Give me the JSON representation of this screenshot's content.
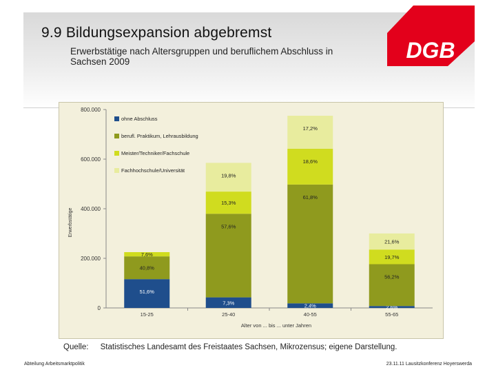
{
  "slide": {
    "title": "9.9 Bildungsexpansion abgebremst",
    "subtitle": "Erwerbstätige nach Altersgruppen und beruflichem Abschluss in Sachsen 2009",
    "logo_text": "DGB",
    "source_label": "Quelle:",
    "source_text": "Statistisches Landesamt des Freistaates Sachsen, Mikrozensus; eigene Darstellung.",
    "footer_left": "Abteilung Arbeitsmarktpolitik",
    "footer_right": "23.11.11 Lausitzkonferenz Hoyerswerda"
  },
  "colors": {
    "brand_red": "#e3001b",
    "ohne": "#1f4e8c",
    "lehre": "#8f9a1e",
    "meister": "#d0dc1f",
    "fhs": "#e8ec9e",
    "chart_bg": "#f3f0dc"
  },
  "chart_data": {
    "type": "bar",
    "stacked": true,
    "categories": [
      "15-25",
      "25-40",
      "40-55",
      "55-65"
    ],
    "xlabel": "Alter von ... bis ... unter Jahren",
    "ylabel": "Erwerbstätige",
    "ylim": [
      0,
      800000
    ],
    "yticks": [
      {
        "value": 0,
        "label": "0"
      },
      {
        "value": 200000,
        "label": "200.000"
      },
      {
        "value": 400000,
        "label": "400.000"
      },
      {
        "value": 600000,
        "label": "600.000"
      },
      {
        "value": 800000,
        "label": "800.000"
      }
    ],
    "totals": [
      225000,
      585000,
      775000,
      300000
    ],
    "legend_position": "top-left",
    "series": [
      {
        "name": "ohne Abschluss",
        "color": "#1f4e8c",
        "shares": [
          51.6,
          7.3,
          2.4,
          2.6
        ],
        "labels": [
          "51,6%",
          "7,3%",
          "2,4%",
          "2,6%"
        ]
      },
      {
        "name": "berufl. Praktikum, Lehrausbildung",
        "color": "#8f9a1e",
        "shares": [
          40.8,
          57.6,
          61.8,
          56.2
        ],
        "labels": [
          "40,8%",
          "57,6%",
          "61,8%",
          "56,2%"
        ]
      },
      {
        "name": "Meister/Techniker/Fachschule",
        "color": "#d0dc1f",
        "shares": [
          7.6,
          15.3,
          18.6,
          19.7
        ],
        "labels": [
          "7,6%",
          "15,3%",
          "18,6%",
          "19,7%"
        ]
      },
      {
        "name": "Fachhochschule/Universität",
        "color": "#e8ec9e",
        "shares": [
          0,
          19.8,
          17.2,
          21.6
        ],
        "labels": [
          "",
          "19,8%",
          "17,2%",
          "21,6%"
        ]
      }
    ]
  }
}
